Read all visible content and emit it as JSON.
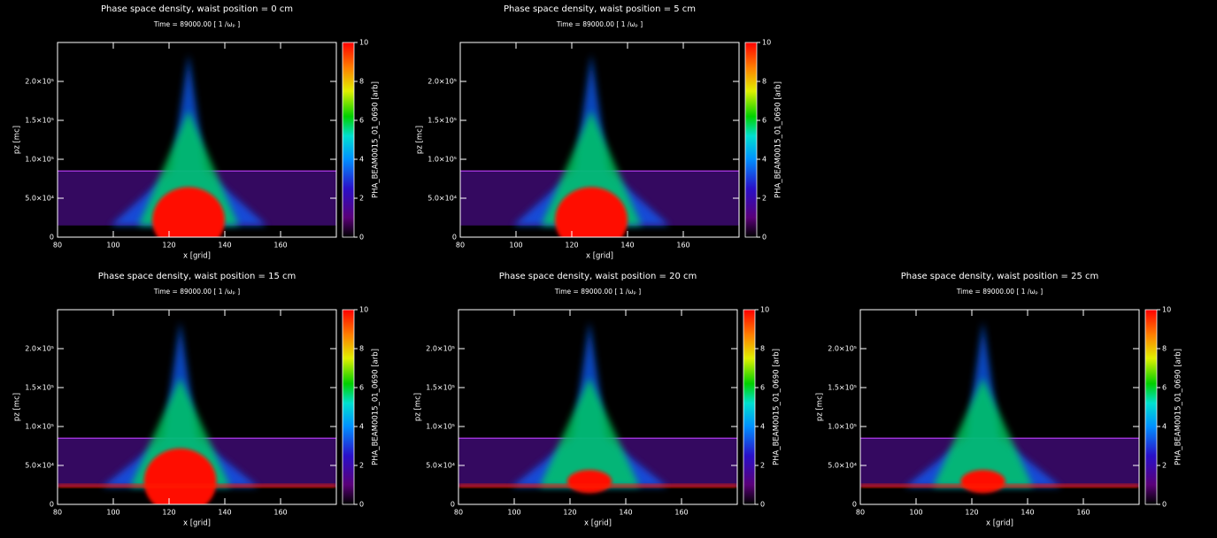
{
  "chart_data": [
    {
      "type": "heatmap",
      "title": "Phase space density, waist position = 0 cm",
      "subtitle": "Time = 89000.00 [ 1 /ωₚ ]",
      "xlabel": "x [grid]",
      "ylabel": "pz [mc]",
      "xlim": [
        80,
        180
      ],
      "ylim": [
        0,
        250000
      ],
      "xticks": [
        80,
        100,
        120,
        140,
        160
      ],
      "yticks": [
        0,
        {
          "value": 50000,
          "label": "5.0×10⁴"
        },
        {
          "value": 100000,
          "label": "1.0×10⁵"
        },
        {
          "value": 150000,
          "label": "1.5×10⁵"
        },
        {
          "value": 200000,
          "label": "2.0×10⁵"
        }
      ],
      "colorbar": {
        "label": "PHA_BEAM0015_01_0690 [arb]",
        "lim": [
          0,
          10
        ],
        "ticks": [
          0,
          2,
          4,
          6,
          8,
          10
        ]
      }
    },
    {
      "type": "heatmap",
      "title": "Phase space density, waist position = 5 cm",
      "subtitle": "Time = 89000.00 [ 1 /ωₚ ]",
      "xlabel": "x [grid]",
      "ylabel": "pz [mc]",
      "xlim": [
        80,
        180
      ],
      "ylim": [
        0,
        250000
      ],
      "xticks": [
        80,
        100,
        120,
        140,
        160
      ],
      "yticks": [
        0,
        {
          "value": 50000,
          "label": "5.0×10⁴"
        },
        {
          "value": 100000,
          "label": "1.0×10⁵"
        },
        {
          "value": 150000,
          "label": "1.5×10⁵"
        },
        {
          "value": 200000,
          "label": "2.0×10⁵"
        }
      ],
      "colorbar": {
        "label": "PHA_BEAM0015_01_0690 [arb]",
        "lim": [
          0,
          10
        ],
        "ticks": [
          0,
          2,
          4,
          6,
          8,
          10
        ]
      }
    },
    {
      "type": "heatmap",
      "title": "Phase space density, waist position = 15 cm",
      "subtitle": "Time = 89000.00 [ 1 /ωₚ ]",
      "xlabel": "x [grid]",
      "ylabel": "pz [mc]",
      "xlim": [
        80,
        180
      ],
      "ylim": [
        0,
        250000
      ],
      "xticks": [
        80,
        100,
        120,
        140,
        160
      ],
      "yticks": [
        0,
        {
          "value": 50000,
          "label": "5.0×10⁴"
        },
        {
          "value": 100000,
          "label": "1.0×10⁵"
        },
        {
          "value": 150000,
          "label": "1.5×10⁵"
        },
        {
          "value": 200000,
          "label": "2.0×10⁵"
        }
      ],
      "colorbar": {
        "label": "PHA_BEAM0015_01_0690 [arb]",
        "lim": [
          0,
          10
        ],
        "ticks": [
          0,
          2,
          4,
          6,
          8,
          10
        ]
      }
    },
    {
      "type": "heatmap",
      "title": "Phase space density, waist position = 20 cm",
      "subtitle": "Time = 89000.00 [ 1 /ωₚ ]",
      "xlabel": "x [grid]",
      "ylabel": "pz [mc]",
      "xlim": [
        80,
        180
      ],
      "ylim": [
        0,
        250000
      ],
      "xticks": [
        80,
        100,
        120,
        140,
        160
      ],
      "yticks": [
        0,
        {
          "value": 50000,
          "label": "5.0×10⁴"
        },
        {
          "value": 100000,
          "label": "1.0×10⁵"
        },
        {
          "value": 150000,
          "label": "1.5×10⁵"
        },
        {
          "value": 200000,
          "label": "2.0×10⁵"
        }
      ],
      "colorbar": {
        "label": "PHA_BEAM0015_01_0690 [arb]",
        "lim": [
          0,
          10
        ],
        "ticks": [
          0,
          2,
          4,
          6,
          8,
          10
        ]
      }
    },
    {
      "type": "heatmap",
      "title": "Phase space density, waist position = 25 cm",
      "subtitle": "Time = 89000.00 [ 1 /ωₚ ]",
      "xlabel": "x [grid]",
      "ylabel": "pz [mc]",
      "xlim": [
        80,
        180
      ],
      "ylim": [
        0,
        250000
      ],
      "xticks": [
        80,
        100,
        120,
        140,
        160
      ],
      "yticks": [
        0,
        {
          "value": 50000,
          "label": "5.0×10⁴"
        },
        {
          "value": 100000,
          "label": "1.0×10⁵"
        },
        {
          "value": 150000,
          "label": "1.5×10⁵"
        },
        {
          "value": 200000,
          "label": "2.0×10⁵"
        }
      ],
      "colorbar": {
        "label": "PHA_BEAM0015_01_0690 [arb]",
        "lim": [
          0,
          10
        ],
        "ticks": [
          0,
          2,
          4,
          6,
          8,
          10
        ]
      }
    }
  ]
}
